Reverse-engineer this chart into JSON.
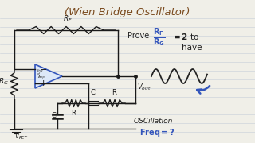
{
  "bg_color": "#f0efe8",
  "line_color": "#1a1a1a",
  "blue_color": "#3355bb",
  "brown_color": "#7a4a1e",
  "title": "(Wien Bridge Oscillator)",
  "bg_lines_color": "#c5cdd8",
  "prove_text": "Prove",
  "eq2_text": "= 2  to",
  "have_text": "have",
  "osc_text": "OSCillation",
  "freq_text": "Freq = ?",
  "vout_text": "V",
  "vout_sub": "out",
  "vref_text": "V",
  "vref_sub": "REF"
}
